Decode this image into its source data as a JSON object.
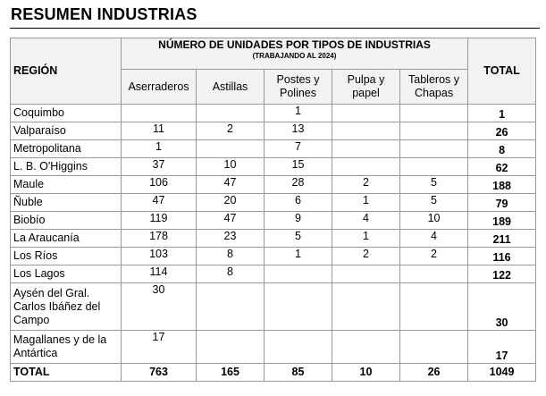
{
  "title": "RESUMEN INDUSTRIAS",
  "header": {
    "region": "REGIÓN",
    "group_title": "NÚMERO DE UNIDADES POR TIPOS DE INDUSTRIAS",
    "group_subtitle": "(TRABAJANDO AL 2024)",
    "total": "TOTAL",
    "columns": [
      "Aserraderos",
      "Astillas",
      "Postes y Polines",
      "Pulpa y papel",
      "Tableros y Chapas"
    ]
  },
  "rows": [
    {
      "region": "Coquimbo",
      "values": [
        "",
        "",
        "1",
        "",
        ""
      ],
      "total": "1"
    },
    {
      "region": "Valparaíso",
      "values": [
        "11",
        "2",
        "13",
        "",
        ""
      ],
      "total": "26"
    },
    {
      "region": "Metropolitana",
      "values": [
        "1",
        "",
        "7",
        "",
        ""
      ],
      "total": "8"
    },
    {
      "region": "L. B. O'Higgins",
      "values": [
        "37",
        "10",
        "15",
        "",
        ""
      ],
      "total": "62"
    },
    {
      "region": "Maule",
      "values": [
        "106",
        "47",
        "28",
        "2",
        "5"
      ],
      "total": "188"
    },
    {
      "region": "Ñuble",
      "values": [
        "47",
        "20",
        "6",
        "1",
        "5"
      ],
      "total": "79"
    },
    {
      "region": "Biobío",
      "values": [
        "119",
        "47",
        "9",
        "4",
        "10"
      ],
      "total": "189"
    },
    {
      "region": "La Araucanía",
      "values": [
        "178",
        "23",
        "5",
        "1",
        "4"
      ],
      "total": "211"
    },
    {
      "region": "Los Ríos",
      "values": [
        "103",
        "8",
        "1",
        "2",
        "2"
      ],
      "total": "116"
    },
    {
      "region": "Los Lagos",
      "values": [
        "114",
        "8",
        "",
        "",
        ""
      ],
      "total": "122"
    },
    {
      "region": "Aysén del Gral. Carlos Ibáñez del Campo",
      "values": [
        "30",
        "",
        "",
        "",
        ""
      ],
      "total": "30"
    },
    {
      "region": "Magallanes y de la Antártica",
      "values": [
        "17",
        "",
        "",
        "",
        ""
      ],
      "total": "17"
    }
  ],
  "totals": {
    "label": "TOTAL",
    "values": [
      "763",
      "165",
      "85",
      "10",
      "26"
    ],
    "total": "1049"
  }
}
